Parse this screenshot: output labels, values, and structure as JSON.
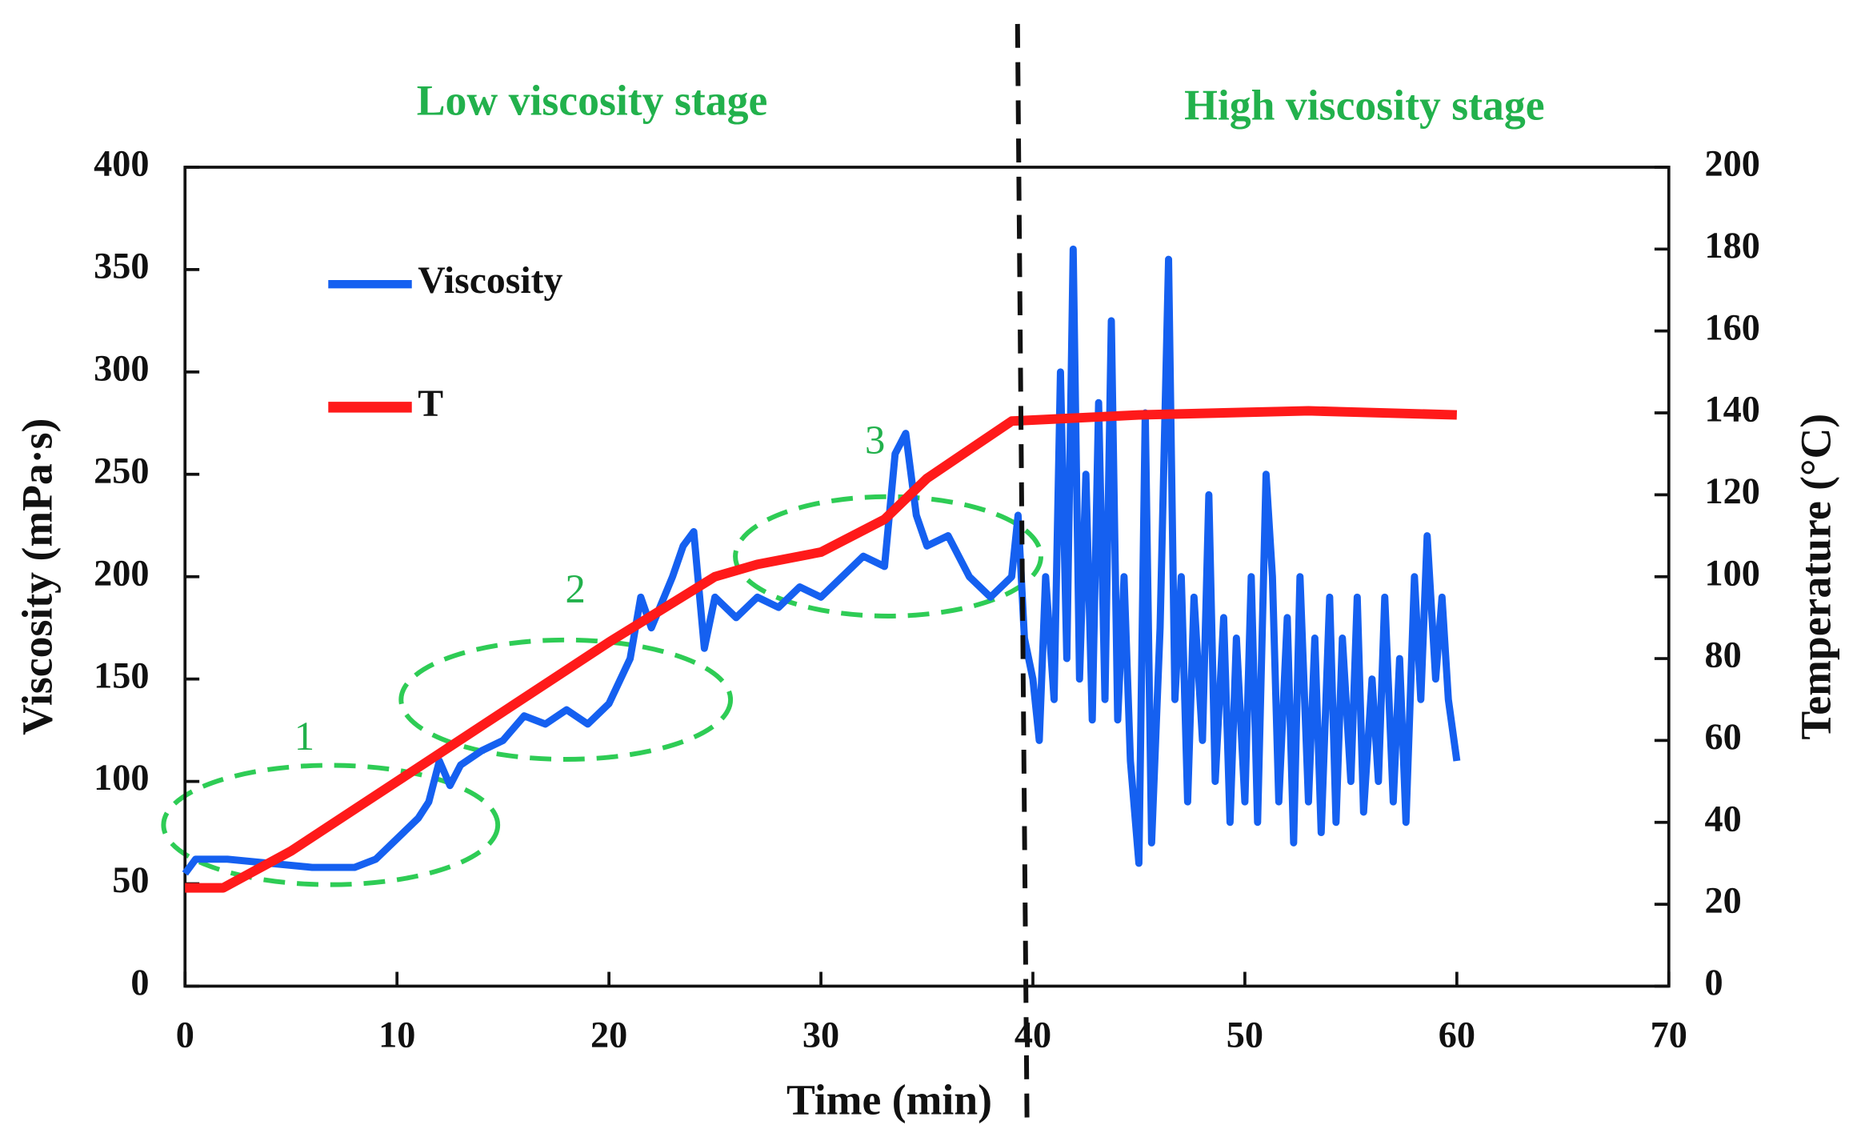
{
  "chart_data": {
    "type": "line",
    "xlabel": "Time (min)",
    "ylabel": "Viscosity (mPa·s)",
    "y2label": "Temperature (°C)",
    "annotations": [
      "Low viscosity stage",
      "High viscosity stage",
      "1",
      "2",
      "3"
    ],
    "vline_x": 39.5,
    "xlim": [
      0,
      70
    ],
    "xticks": [
      0,
      10,
      20,
      30,
      40,
      50,
      60,
      70
    ],
    "ylim": [
      0,
      400
    ],
    "yticks": [
      0,
      50,
      100,
      150,
      200,
      250,
      300,
      350,
      400
    ],
    "y2lim": [
      0,
      200
    ],
    "y2ticks": [
      0,
      20,
      40,
      60,
      80,
      100,
      120,
      140,
      160,
      180,
      200
    ],
    "legend": "upper left",
    "series": [
      {
        "name": "Viscosity",
        "color": "#1560f0",
        "x": [
          0,
          0.5,
          2,
          4,
          6,
          8,
          9,
          10,
          11,
          11.5,
          12,
          12.5,
          13,
          14,
          15,
          16,
          17,
          18,
          19,
          20,
          21,
          21.5,
          22,
          23,
          23.5,
          24,
          24.5,
          25,
          26,
          27,
          28,
          29,
          30,
          31,
          32,
          33,
          33.5,
          34,
          34.5,
          35,
          36,
          37,
          38,
          39,
          39.3,
          39.6,
          40,
          40.3,
          40.6,
          41,
          41.3,
          41.6,
          41.9,
          42.2,
          42.5,
          42.8,
          43.1,
          43.4,
          43.7,
          44,
          44.3,
          44.6,
          45,
          45.3,
          45.6,
          46,
          46.4,
          46.7,
          47,
          47.3,
          47.6,
          48,
          48.3,
          48.6,
          49,
          49.3,
          49.6,
          50,
          50.3,
          50.6,
          51,
          51.3,
          51.6,
          52,
          52.3,
          52.6,
          53,
          53.3,
          53.6,
          54,
          54.3,
          54.6,
          55,
          55.3,
          55.6,
          56,
          56.3,
          56.6,
          57,
          57.3,
          57.6,
          58,
          58.3,
          58.6,
          59,
          59.3,
          59.6,
          60
        ],
        "values": [
          55,
          62,
          62,
          60,
          58,
          58,
          62,
          72,
          82,
          90,
          110,
          98,
          108,
          115,
          120,
          132,
          128,
          135,
          128,
          138,
          160,
          190,
          175,
          200,
          215,
          222,
          165,
          190,
          180,
          190,
          185,
          195,
          190,
          200,
          210,
          205,
          260,
          270,
          230,
          215,
          220,
          200,
          190,
          200,
          230,
          170,
          150,
          120,
          200,
          140,
          300,
          160,
          360,
          150,
          250,
          130,
          285,
          140,
          325,
          130,
          200,
          110,
          60,
          280,
          70,
          175,
          355,
          140,
          200,
          90,
          190,
          120,
          240,
          100,
          180,
          80,
          170,
          90,
          200,
          80,
          250,
          200,
          90,
          180,
          70,
          200,
          90,
          170,
          75,
          190,
          80,
          170,
          100,
          190,
          85,
          150,
          100,
          190,
          90,
          160,
          80,
          200,
          140,
          220,
          150,
          190,
          140,
          110
        ]
      },
      {
        "name": "T",
        "color": "#ff1a1a",
        "axis": "y2",
        "x": [
          0,
          1.8,
          5,
          10,
          15,
          20,
          25,
          27,
          30,
          33,
          35,
          37,
          39,
          45,
          53,
          60
        ],
        "values": [
          24,
          24,
          33,
          50,
          67,
          84,
          100,
          103,
          106,
          114,
          124,
          131,
          138,
          139.5,
          140.5,
          139.5
        ]
      }
    ]
  }
}
